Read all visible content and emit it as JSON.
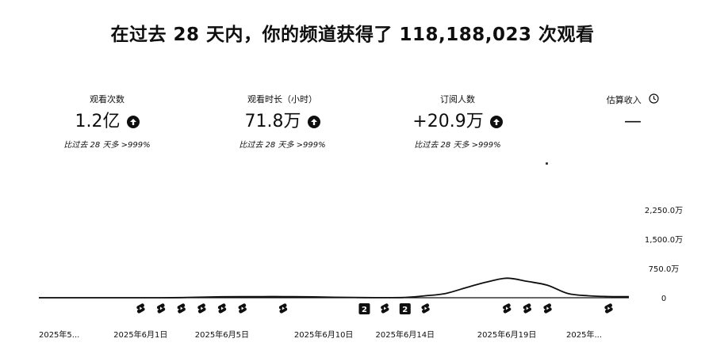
{
  "headline": "在过去 28 天内，你的频道获得了 118,188,023 次观看",
  "stats": [
    {
      "label": "观看次数",
      "value": "1.2亿",
      "compare": "比过去 28 天多 >999%",
      "icon": "arrow-up-circle-icon"
    },
    {
      "label": "观看时长（小时）",
      "value": "71.8万",
      "compare": "比过去 28 天多 >999%",
      "icon": "arrow-up-circle-icon"
    },
    {
      "label": "订阅人数",
      "value": "+20.9万",
      "compare": "比过去 28 天多 >999%",
      "icon": "arrow-up-circle-icon"
    },
    {
      "label": "估算收入",
      "value": "—",
      "compare": "",
      "icon": "clock-icon"
    }
  ],
  "chart_data": {
    "type": "line",
    "series": [
      {
        "values": [
          0,
          0,
          0,
          0,
          0,
          0,
          0,
          5,
          15,
          24,
          27,
          28,
          29,
          24,
          17,
          10,
          5,
          3,
          8,
          50,
          110,
          260,
          400,
          500,
          420,
          320,
          110,
          50,
          30,
          28
        ]
      }
    ],
    "yticks": [
      "2,250.0万",
      "1,500.0万",
      "750.0万",
      "0"
    ],
    "ytick_values": [
      2250,
      1500,
      750,
      0
    ],
    "ylim": [
      0,
      2250
    ],
    "y_unit": "万",
    "xtick_labels": [
      "2025年5...",
      "2025年6月1日",
      "2025年6月5日",
      "2025年6月10日",
      "2025年6月14日",
      "2025年6月19日",
      "2025年..."
    ],
    "xtick_indices": [
      1.0,
      5.0,
      9.0,
      14.0,
      18.0,
      23.0,
      26.8
    ],
    "markers": [
      {
        "index": 5,
        "kind": "shorts-icon"
      },
      {
        "index": 6,
        "kind": "shorts-icon"
      },
      {
        "index": 7,
        "kind": "shorts-icon"
      },
      {
        "index": 8,
        "kind": "shorts-icon"
      },
      {
        "index": 9,
        "kind": "shorts-icon"
      },
      {
        "index": 10,
        "kind": "shorts-icon"
      },
      {
        "index": 12,
        "kind": "shorts-icon"
      },
      {
        "index": 16,
        "kind": "badge",
        "text": "2"
      },
      {
        "index": 17,
        "kind": "shorts-icon"
      },
      {
        "index": 18,
        "kind": "badge",
        "text": "2"
      },
      {
        "index": 19,
        "kind": "shorts-icon"
      },
      {
        "index": 23,
        "kind": "shorts-icon"
      },
      {
        "index": 24,
        "kind": "shorts-icon"
      },
      {
        "index": 25,
        "kind": "shorts-icon"
      },
      {
        "index": 28,
        "kind": "shorts-icon"
      }
    ],
    "grid": false
  }
}
